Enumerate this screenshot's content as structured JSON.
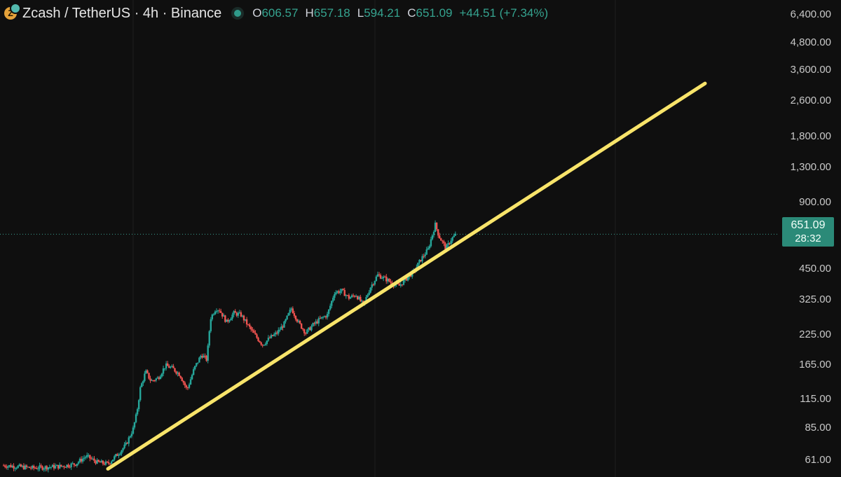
{
  "header": {
    "coin_glyph": "Z",
    "symbol": "Zcash / TetherUS · 4h · Binance",
    "open_label": "O",
    "open": "606.57",
    "high_label": "H",
    "high": "657.18",
    "low_label": "L",
    "low": "594.21",
    "close_label": "C",
    "close": "651.09",
    "change": "+44.51 (+7.34%)"
  },
  "price_tag": {
    "price": "651.09",
    "countdown": "28:32"
  },
  "colors": {
    "up": "#26a69a",
    "down": "#ef5350",
    "trendline": "#f8e46a",
    "background": "#0f0f0f",
    "tag": "#2b8a78"
  },
  "chart_data": {
    "type": "candlestick",
    "scale": "log",
    "ylim": [
      55,
      6400
    ],
    "y_ticks": [
      "61.00",
      "85.00",
      "115.00",
      "165.00",
      "225.00",
      "325.00",
      "450.00",
      "900.00",
      "1,300.00",
      "1,800.00",
      "2,600.00",
      "3,600.00",
      "4,800.00",
      "6,400.00"
    ],
    "y_tick_values": [
      61,
      85,
      115,
      165,
      225,
      325,
      450,
      900,
      1300,
      1800,
      2600,
      3600,
      4800,
      6400
    ],
    "last_price": 651.09,
    "trendline": {
      "from_index": 0.29,
      "from_price": 56,
      "to_index": 1.95,
      "to_price": 3150
    },
    "path": [
      [
        0,
        58
      ],
      [
        0.03,
        57.5
      ],
      [
        0.08,
        56.5
      ],
      [
        0.12,
        57
      ],
      [
        0.16,
        57.5
      ],
      [
        0.2,
        59
      ],
      [
        0.23,
        64
      ],
      [
        0.26,
        60
      ],
      [
        0.29,
        59
      ],
      [
        0.32,
        66
      ],
      [
        0.34,
        72
      ],
      [
        0.36,
        85
      ],
      [
        0.37,
        100
      ],
      [
        0.38,
        130
      ],
      [
        0.395,
        155
      ],
      [
        0.41,
        140
      ],
      [
        0.43,
        145
      ],
      [
        0.45,
        165
      ],
      [
        0.47,
        160
      ],
      [
        0.49,
        150
      ],
      [
        0.51,
        128
      ],
      [
        0.53,
        160
      ],
      [
        0.55,
        185
      ],
      [
        0.565,
        175
      ],
      [
        0.575,
        270
      ],
      [
        0.59,
        300
      ],
      [
        0.6,
        295
      ],
      [
        0.62,
        260
      ],
      [
        0.64,
        285
      ],
      [
        0.66,
        280
      ],
      [
        0.68,
        250
      ],
      [
        0.7,
        225
      ],
      [
        0.72,
        205
      ],
      [
        0.74,
        220
      ],
      [
        0.76,
        232
      ],
      [
        0.78,
        255
      ],
      [
        0.8,
        300
      ],
      [
        0.82,
        258
      ],
      [
        0.84,
        232
      ],
      [
        0.86,
        252
      ],
      [
        0.88,
        268
      ],
      [
        0.9,
        280
      ],
      [
        0.92,
        355
      ],
      [
        0.94,
        360
      ],
      [
        0.96,
        335
      ],
      [
        0.98,
        345
      ],
      [
        1.0,
        310
      ],
      [
        1.02,
        375
      ],
      [
        1.04,
        425
      ],
      [
        1.06,
        410
      ],
      [
        1.08,
        390
      ],
      [
        1.1,
        380
      ],
      [
        1.12,
        410
      ],
      [
        1.14,
        440
      ],
      [
        1.16,
        500
      ],
      [
        1.18,
        555
      ],
      [
        1.2,
        720
      ],
      [
        1.21,
        640
      ],
      [
        1.23,
        560
      ],
      [
        1.245,
        620
      ],
      [
        1.26,
        655
      ]
    ]
  }
}
